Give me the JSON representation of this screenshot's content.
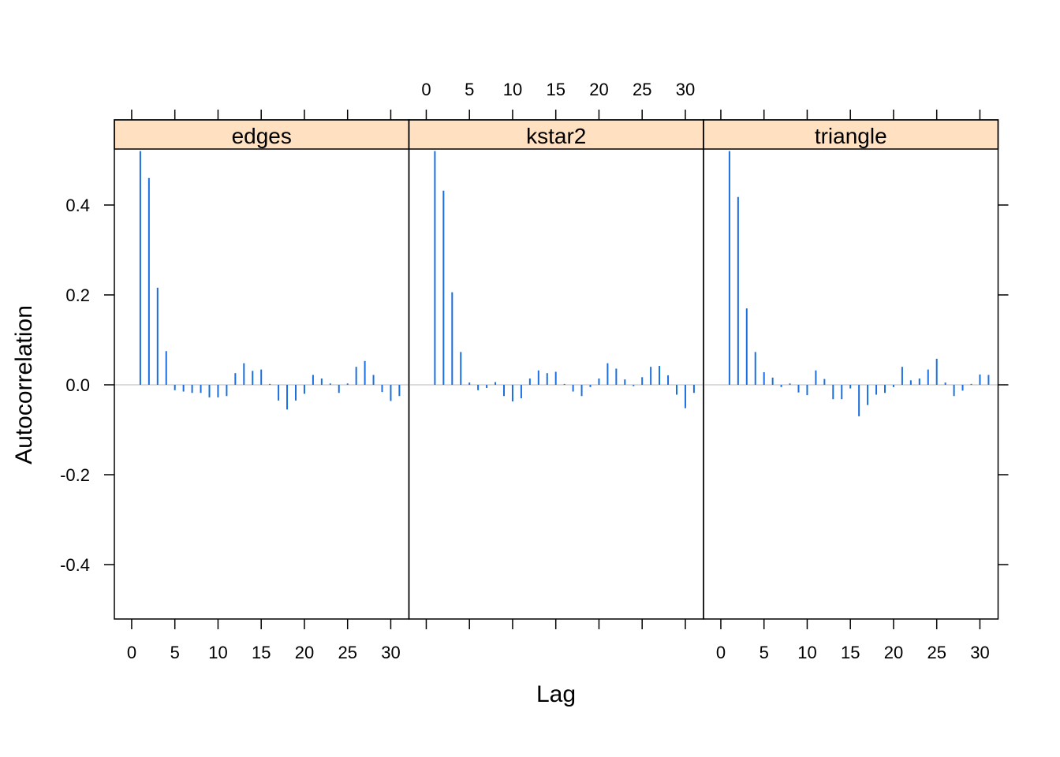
{
  "chart_data": {
    "type": "bar",
    "layout": "trellis-panels",
    "xlabel": "Lag",
    "ylabel": "Autocorrelation",
    "xlim": [
      -1,
      33
    ],
    "ylim": [
      -0.52,
      0.52
    ],
    "x_ticks": [
      0,
      5,
      10,
      15,
      20,
      25,
      30
    ],
    "y_ticks": [
      -0.4,
      -0.2,
      0.0,
      0.2,
      0.4
    ],
    "y_tick_labels": [
      "-0.4",
      "-0.2",
      "0.0",
      "0.2",
      "0.4"
    ],
    "bar_color": "#1a6fdf",
    "zero_line_color": "#d0d0d0",
    "strip_color": "#ffe0c0",
    "panels": [
      {
        "name": "edges",
        "lags": [
          1,
          2,
          3,
          4,
          5,
          6,
          7,
          8,
          9,
          10,
          11,
          12,
          13,
          14,
          15,
          16,
          17,
          18,
          19,
          20,
          21,
          22,
          23,
          24,
          25,
          26,
          27,
          28,
          29,
          30,
          31
        ],
        "values": [
          0.52,
          0.46,
          0.216,
          0.075,
          -0.012,
          -0.015,
          -0.018,
          -0.018,
          -0.028,
          -0.028,
          -0.025,
          0.026,
          0.048,
          0.031,
          0.034,
          0.002,
          -0.035,
          -0.055,
          -0.035,
          -0.02,
          0.022,
          0.014,
          0.003,
          -0.018,
          0.003,
          0.04,
          0.053,
          0.022,
          -0.016,
          -0.036,
          -0.025
        ]
      },
      {
        "name": "kstar2",
        "lags": [
          1,
          2,
          3,
          4,
          5,
          6,
          7,
          8,
          9,
          10,
          11,
          12,
          13,
          14,
          15,
          16,
          17,
          18,
          19,
          20,
          21,
          22,
          23,
          24,
          25,
          26,
          27,
          28,
          29,
          30,
          31
        ],
        "values": [
          0.52,
          0.432,
          0.206,
          0.073,
          0.005,
          -0.012,
          -0.007,
          0.006,
          -0.025,
          -0.037,
          -0.03,
          0.014,
          0.032,
          0.026,
          0.029,
          0.002,
          -0.015,
          -0.025,
          -0.005,
          0.014,
          0.048,
          0.036,
          0.012,
          -0.003,
          0.017,
          0.04,
          0.042,
          0.021,
          -0.022,
          -0.052,
          -0.018
        ]
      },
      {
        "name": "triangle",
        "lags": [
          1,
          2,
          3,
          4,
          5,
          6,
          7,
          8,
          9,
          10,
          11,
          12,
          13,
          14,
          15,
          16,
          17,
          18,
          19,
          20,
          21,
          22,
          23,
          24,
          25,
          26,
          27,
          28,
          29,
          30,
          31
        ],
        "values": [
          0.52,
          0.418,
          0.17,
          0.073,
          0.028,
          0.016,
          -0.005,
          0.003,
          -0.017,
          -0.023,
          0.032,
          0.013,
          -0.032,
          -0.032,
          -0.008,
          -0.07,
          -0.045,
          -0.022,
          -0.018,
          -0.005,
          0.04,
          0.01,
          0.014,
          0.034,
          0.058,
          0.005,
          -0.025,
          -0.013,
          0.002,
          0.023,
          0.022
        ]
      }
    ]
  }
}
